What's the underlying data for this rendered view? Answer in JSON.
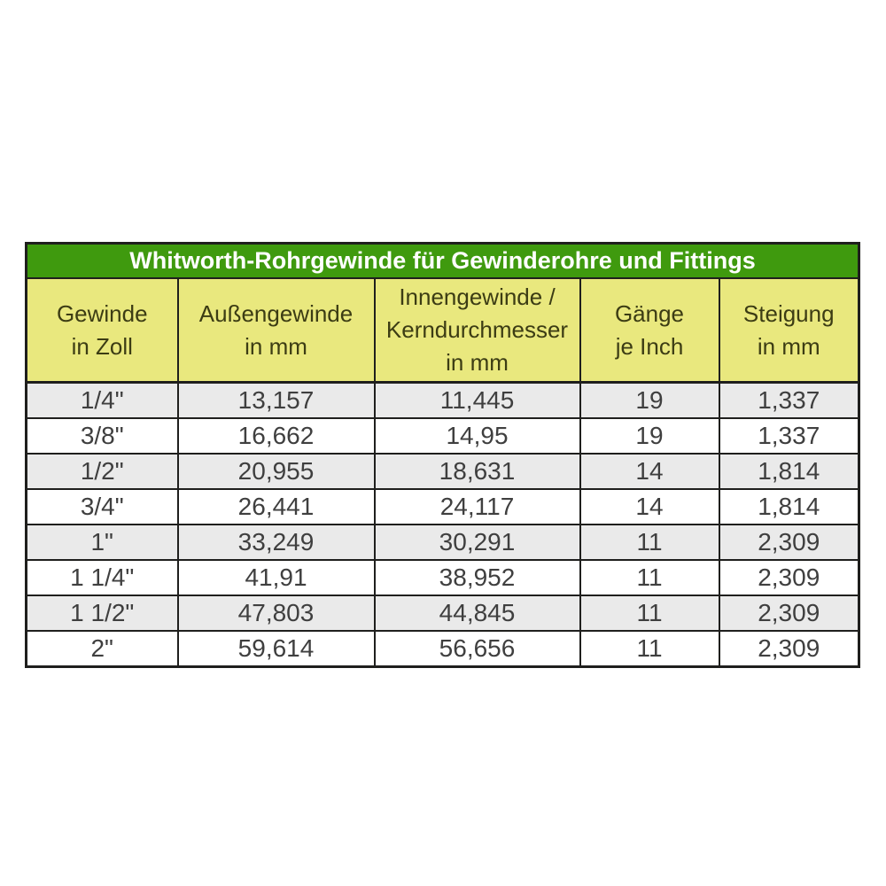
{
  "table": {
    "title": "Whitworth-Rohrgewinde für Gewinderohre und Fittings",
    "columns": [
      {
        "id": "gewinde-in-zoll",
        "lines": [
          "Gewinde",
          "in Zoll"
        ]
      },
      {
        "id": "aussengewinde-in-mm",
        "lines": [
          "Außengewinde",
          "in mm"
        ]
      },
      {
        "id": "innengewinde-kerndurchmesser-in-mm",
        "lines": [
          "Innengewinde /",
          "Kerndurchmesser",
          "in mm"
        ]
      },
      {
        "id": "gaenge-je-inch",
        "lines": [
          "Gänge",
          "je Inch"
        ]
      },
      {
        "id": "steigung-in-mm",
        "lines": [
          "Steigung",
          "in mm"
        ]
      }
    ],
    "rows": [
      [
        "1/4\"",
        "13,157",
        "11,445",
        "19",
        "1,337"
      ],
      [
        "3/8\"",
        "16,662",
        "14,95",
        "19",
        "1,337"
      ],
      [
        "1/2\"",
        "20,955",
        "18,631",
        "14",
        "1,814"
      ],
      [
        "3/4\"",
        "26,441",
        "24,117",
        "14",
        "1,814"
      ],
      [
        "1\"",
        "33,249",
        "30,291",
        "11",
        "2,309"
      ],
      [
        "1 1/4\"",
        "41,91",
        "38,952",
        "11",
        "2,309"
      ],
      [
        "1 1/2\"",
        "47,803",
        "44,845",
        "11",
        "2,309"
      ],
      [
        "2\"",
        "59,614",
        "56,656",
        "11",
        "2,309"
      ]
    ]
  },
  "colors": {
    "title_background": "#3f9a0e",
    "title_text": "#ffffff",
    "header_background": "#e9e87e",
    "header_text": "#3c3c14",
    "row_shaded": "#eaeaea",
    "row_plain": "#ffffff",
    "border": "#1f1f1d",
    "data_text": "#3f3f3f"
  },
  "chart_data": {
    "type": "table",
    "title": "Whitworth-Rohrgewinde für Gewinderohre und Fittings",
    "columns": [
      "Gewinde in Zoll",
      "Außengewinde in mm",
      "Innengewinde / Kerndurchmesser in mm",
      "Gänge je Inch",
      "Steigung in mm"
    ],
    "rows": [
      [
        "1/4\"",
        "13,157",
        "11,445",
        "19",
        "1,337"
      ],
      [
        "3/8\"",
        "16,662",
        "14,95",
        "19",
        "1,337"
      ],
      [
        "1/2\"",
        "20,955",
        "18,631",
        "14",
        "1,814"
      ],
      [
        "3/4\"",
        "26,441",
        "24,117",
        "14",
        "1,814"
      ],
      [
        "1\"",
        "33,249",
        "30,291",
        "11",
        "2,309"
      ],
      [
        "1 1/4\"",
        "41,91",
        "38,952",
        "11",
        "2,309"
      ],
      [
        "1 1/2\"",
        "47,803",
        "44,845",
        "11",
        "2,309"
      ],
      [
        "2\"",
        "59,614",
        "56,656",
        "11",
        "2,309"
      ]
    ]
  }
}
